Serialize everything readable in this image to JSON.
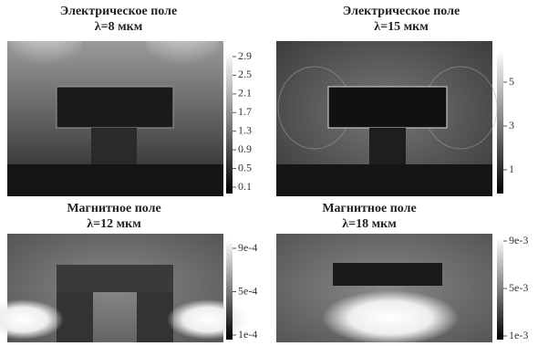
{
  "panels": [
    {
      "title": "Электрическое поле",
      "subtitle": "λ=8 мкм",
      "colorbar_ticks": [
        "2.9",
        "2.5",
        "2.1",
        "1.7",
        "1.3",
        "0.9",
        "0.5",
        "0.1"
      ]
    },
    {
      "title": "Электрическое поле",
      "subtitle": "λ=15 мкм",
      "colorbar_ticks": [
        "5",
        "3",
        "1"
      ]
    },
    {
      "title": "Магнитное поле",
      "subtitle": "λ=12 мкм",
      "colorbar_ticks": [
        "9e-4",
        "5e-4",
        "1e-4"
      ]
    },
    {
      "title": "Магнитное поле",
      "subtitle": "λ=18 мкм",
      "colorbar_ticks": [
        "9e-3",
        "5e-3",
        "1e-3"
      ]
    }
  ]
}
